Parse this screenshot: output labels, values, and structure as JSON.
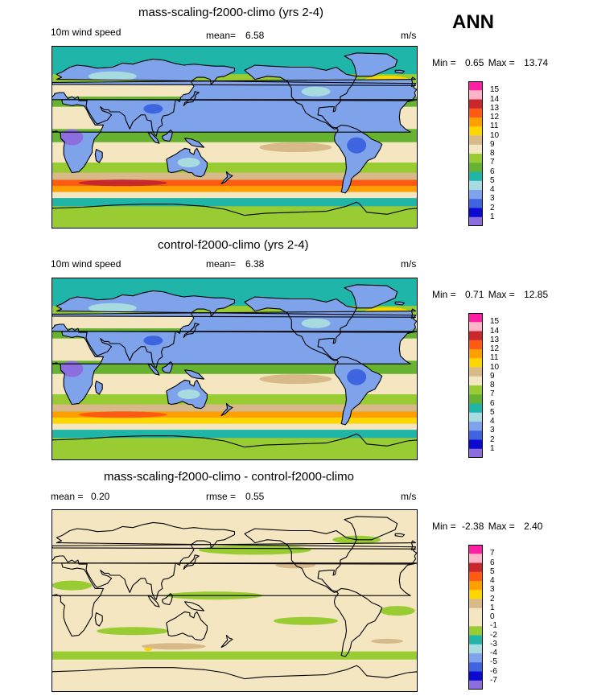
{
  "season": "ANN",
  "panels": [
    {
      "title": "mass-scaling-f2000-climo (yrs 2-4)",
      "left_label": "10m wind speed",
      "mid_label": "mean=",
      "mid_value": "6.58",
      "units": "m/s",
      "min_label": "Min =",
      "min_value": "0.65",
      "max_label": "Max =",
      "max_value": "13.74",
      "colorbar": {
        "labels": [
          "15",
          "14",
          "13",
          "12",
          "11",
          "10",
          "9",
          "8",
          "7",
          "6",
          "5",
          "4",
          "3",
          "2",
          "1"
        ],
        "colors": [
          "#ff1fa6",
          "#ffb3c6",
          "#c8282d",
          "#ff5a14",
          "#ff9f00",
          "#ffd700",
          "#d8b98a",
          "#f5e6c2",
          "#99cc33",
          "#66b332",
          "#1fb5a9",
          "#a7dbe0",
          "#7fa3ea",
          "#3e64e0",
          "#0a0ad0",
          "#8c6ee0"
        ],
        "map_fill": [
          "#8c6ee0",
          "#3e64e0",
          "#7fa3ea",
          "#a7dbe0",
          "#1fb5a9",
          "#66b332",
          "#99cc33",
          "#f5e6c2",
          "#d8b98a",
          "#ffd700",
          "#ff9f00",
          "#ff5a14",
          "#c8282d"
        ]
      }
    },
    {
      "title": "control-f2000-climo (yrs 2-4)",
      "left_label": "10m wind speed",
      "mid_label": "mean=",
      "mid_value": "6.38",
      "units": "m/s",
      "min_label": "Min =",
      "min_value": "0.71",
      "max_label": "Max =",
      "max_value": "12.85",
      "colorbar": {
        "labels": [
          "15",
          "14",
          "13",
          "12",
          "11",
          "10",
          "9",
          "8",
          "7",
          "6",
          "5",
          "4",
          "3",
          "2",
          "1"
        ],
        "colors": [
          "#ff1fa6",
          "#ffb3c6",
          "#c8282d",
          "#ff5a14",
          "#ff9f00",
          "#ffd700",
          "#d8b98a",
          "#f5e6c2",
          "#99cc33",
          "#66b332",
          "#1fb5a9",
          "#a7dbe0",
          "#7fa3ea",
          "#3e64e0",
          "#0a0ad0",
          "#8c6ee0"
        ],
        "map_fill": [
          "#8c6ee0",
          "#3e64e0",
          "#7fa3ea",
          "#a7dbe0",
          "#1fb5a9",
          "#66b332",
          "#99cc33",
          "#f5e6c2",
          "#d8b98a",
          "#ffd700",
          "#ff9f00",
          "#ff5a14",
          "#c8282d"
        ]
      }
    },
    {
      "title": "mass-scaling-f2000-climo - control-f2000-climo",
      "left_label": "mean =",
      "left_value": "0.20",
      "mid_label": "rmse =",
      "mid_value": "0.55",
      "units": "m/s",
      "min_label": "Min =",
      "min_value": "-2.38",
      "max_label": "Max =",
      "max_value": "2.40",
      "colorbar": {
        "labels": [
          "7",
          "6",
          "5",
          "4",
          "3",
          "2",
          "1",
          "0",
          "-1",
          "-2",
          "-3",
          "-4",
          "-5",
          "-6",
          "-7"
        ],
        "colors": [
          "#ff1fa6",
          "#ffb3c6",
          "#c8282d",
          "#ff5a14",
          "#ff9f00",
          "#ffd700",
          "#d8b98a",
          "#f5e6c2",
          "#f5e6c2",
          "#99cc33",
          "#1fb5a9",
          "#a7dbe0",
          "#7fa3ea",
          "#3e64e0",
          "#0a0ad0",
          "#8c6ee0"
        ],
        "map_fill": [
          "#f5e6c2",
          "#99cc33",
          "#d8b98a",
          "#ffd700"
        ]
      }
    }
  ]
}
